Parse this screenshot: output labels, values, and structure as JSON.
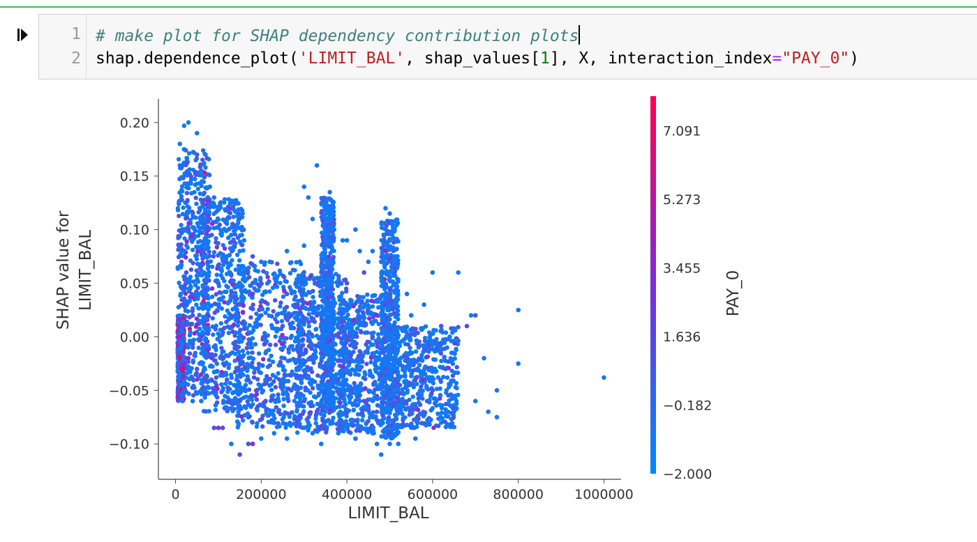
{
  "cell": {
    "lines": [
      {
        "number": "1",
        "tokens": [
          {
            "type": "comment",
            "text": "# make plot for SHAP dependency contribution plots"
          }
        ]
      },
      {
        "number": "2",
        "tokens": [
          {
            "type": "plain",
            "text": "shap.dependence_plot("
          },
          {
            "type": "string",
            "text": "'LIMIT_BAL'"
          },
          {
            "type": "plain",
            "text": ", shap_values["
          },
          {
            "type": "number",
            "text": "1"
          },
          {
            "type": "plain",
            "text": "], X, interaction_index"
          },
          {
            "type": "op",
            "text": "="
          },
          {
            "type": "string",
            "text": "\"PAY_0\""
          },
          {
            "type": "plain",
            "text": ")"
          }
        ]
      }
    ]
  },
  "chart_data": {
    "type": "scatter",
    "xlabel": "LIMIT_BAL",
    "ylabel_lines": [
      "SHAP value for",
      "LIMIT_BAL"
    ],
    "colorbar_label": "PAY_0",
    "xlim": [
      -40000,
      1040000
    ],
    "ylim": [
      -0.133,
      0.222
    ],
    "xticks": [
      0,
      200000,
      400000,
      600000,
      800000,
      1000000
    ],
    "xtick_labels": [
      "0",
      "200000",
      "400000",
      "600000",
      "800000",
      "1000000"
    ],
    "yticks": [
      -0.1,
      -0.05,
      0.0,
      0.05,
      0.1,
      0.15,
      0.2
    ],
    "ytick_labels": [
      "−0.10",
      "−0.05",
      "0.00",
      "0.05",
      "0.10",
      "0.15",
      "0.20"
    ],
    "colorbar_ticks": [
      -2.0,
      -0.182,
      1.636,
      3.455,
      5.273,
      7.091
    ],
    "colorbar_tick_labels": [
      "−2.000",
      "−0.182",
      "1.636",
      "3.455",
      "5.273",
      "7.091"
    ],
    "colorbar_range": [
      -2.0,
      8.0
    ],
    "colormap": [
      "#008afb",
      "#7a2cd8",
      "#ff0052"
    ],
    "points": [
      [
        10000,
        0.18,
        0
      ],
      [
        20000,
        0.197,
        0
      ],
      [
        30000,
        0.2,
        0
      ],
      [
        50000,
        0.19,
        0
      ],
      [
        20000,
        0.175,
        0
      ],
      [
        50000,
        0.17,
        1
      ],
      [
        70000,
        0.17,
        0
      ],
      [
        10000,
        0.16,
        0
      ],
      [
        30000,
        0.155,
        0
      ],
      [
        60000,
        0.155,
        0
      ],
      [
        80000,
        0.14,
        0
      ],
      [
        90000,
        0.13,
        0
      ],
      [
        100000,
        0.12,
        0
      ],
      [
        120000,
        0.11,
        0
      ],
      [
        130000,
        0.095,
        0
      ],
      [
        140000,
        0.1,
        0
      ],
      [
        160000,
        0.09,
        0
      ],
      [
        150000,
        0.08,
        0
      ],
      [
        180000,
        0.075,
        1
      ],
      [
        200000,
        0.07,
        0
      ],
      [
        220000,
        0.07,
        0
      ],
      [
        260000,
        0.08,
        0
      ],
      [
        290000,
        0.07,
        0
      ],
      [
        300000,
        0.085,
        0
      ],
      [
        310000,
        0.13,
        0
      ],
      [
        330000,
        0.16,
        0
      ],
      [
        320000,
        0.11,
        0
      ],
      [
        300000,
        0.14,
        0
      ],
      [
        350000,
        0.125,
        0
      ],
      [
        360000,
        0.135,
        0
      ],
      [
        370000,
        0.1,
        0
      ],
      [
        390000,
        0.09,
        0
      ],
      [
        400000,
        0.09,
        0
      ],
      [
        420000,
        0.1,
        0
      ],
      [
        430000,
        0.08,
        0
      ],
      [
        450000,
        0.07,
        0
      ],
      [
        460000,
        0.08,
        0
      ],
      [
        480000,
        0.07,
        0
      ],
      [
        490000,
        0.12,
        0
      ],
      [
        500000,
        0.115,
        0
      ],
      [
        500000,
        0.09,
        0
      ],
      [
        500000,
        0.06,
        0
      ],
      [
        510000,
        0.03,
        0
      ],
      [
        540000,
        0.04,
        0
      ],
      [
        550000,
        0.02,
        0
      ],
      [
        580000,
        0.03,
        0
      ],
      [
        600000,
        0.06,
        0
      ],
      [
        620000,
        0.01,
        1
      ],
      [
        640000,
        0.0,
        0
      ],
      [
        660000,
        0.06,
        0
      ],
      [
        680000,
        0.01,
        1
      ],
      [
        690000,
        0.02,
        0
      ],
      [
        700000,
        0.02,
        1
      ],
      [
        720000,
        -0.02,
        0
      ],
      [
        750000,
        -0.05,
        0
      ],
      [
        800000,
        0.025,
        0
      ],
      [
        800000,
        -0.025,
        0
      ],
      [
        1000000,
        -0.038,
        0
      ],
      [
        730000,
        -0.07,
        0
      ],
      [
        750000,
        -0.075,
        0
      ],
      [
        700000,
        -0.06,
        0
      ],
      [
        650000,
        -0.07,
        0
      ],
      [
        620000,
        -0.08,
        0
      ],
      [
        560000,
        -0.095,
        0
      ],
      [
        520000,
        -0.1,
        0
      ],
      [
        500000,
        -0.1,
        0
      ],
      [
        480000,
        -0.11,
        0
      ],
      [
        470000,
        -0.1,
        0
      ],
      [
        460000,
        -0.09,
        0
      ],
      [
        420000,
        -0.095,
        0
      ],
      [
        380000,
        -0.09,
        0
      ],
      [
        340000,
        -0.1,
        0
      ],
      [
        320000,
        -0.09,
        0
      ],
      [
        300000,
        -0.085,
        0
      ],
      [
        260000,
        -0.095,
        0
      ],
      [
        230000,
        -0.09,
        0
      ],
      [
        200000,
        -0.095,
        0
      ],
      [
        180000,
        -0.1,
        2
      ],
      [
        170000,
        -0.1,
        1
      ],
      [
        150000,
        -0.11,
        1
      ],
      [
        130000,
        -0.1,
        0
      ],
      [
        110000,
        -0.085,
        1
      ],
      [
        100000,
        -0.085,
        2
      ],
      [
        90000,
        -0.085,
        1
      ],
      [
        60000,
        -0.06,
        0
      ],
      [
        40000,
        -0.06,
        0
      ],
      [
        15000,
        -0.055,
        0
      ],
      [
        20000,
        -0.05,
        0
      ],
      [
        10000,
        -0.02,
        3
      ],
      [
        15000,
        -0.03,
        3
      ],
      [
        20000,
        -0.025,
        2
      ],
      [
        10000,
        0.0,
        2
      ],
      [
        15000,
        0.01,
        1
      ],
      [
        30000,
        -0.02,
        2
      ],
      [
        20000,
        0.03,
        1
      ],
      [
        40000,
        0.02,
        1
      ],
      [
        50000,
        -0.03,
        1
      ],
      [
        60000,
        0.0,
        1
      ],
      [
        70000,
        -0.04,
        1
      ],
      [
        90000,
        -0.05,
        1
      ],
      [
        120000,
        -0.04,
        1
      ],
      [
        150000,
        -0.06,
        1
      ],
      [
        170000,
        -0.04,
        1
      ],
      [
        190000,
        -0.05,
        1
      ],
      [
        210000,
        -0.06,
        1
      ],
      [
        240000,
        -0.07,
        1
      ],
      [
        270000,
        -0.05,
        1
      ],
      [
        300000,
        -0.06,
        1
      ],
      [
        330000,
        -0.07,
        1
      ],
      [
        350000,
        -0.03,
        1
      ],
      [
        380000,
        -0.04,
        1
      ],
      [
        410000,
        -0.05,
        1
      ],
      [
        440000,
        -0.06,
        1
      ],
      [
        470000,
        -0.07,
        1
      ],
      [
        490000,
        -0.03,
        1
      ],
      [
        500000,
        -0.05,
        1
      ],
      [
        520000,
        -0.06,
        1
      ],
      [
        540000,
        -0.02,
        1
      ],
      [
        560000,
        -0.04,
        1
      ],
      [
        600000,
        -0.05,
        1
      ],
      [
        630000,
        -0.03,
        1
      ],
      [
        150000,
        0.03,
        1
      ],
      [
        200000,
        0.02,
        1
      ],
      [
        250000,
        0.01,
        1
      ],
      [
        280000,
        0.03,
        1
      ],
      [
        330000,
        0.02,
        1
      ],
      [
        380000,
        0.0,
        1
      ],
      [
        420000,
        -0.01,
        1
      ],
      [
        460000,
        0.0,
        1
      ],
      [
        180000,
        0.04,
        2
      ],
      [
        260000,
        0.04,
        1
      ],
      [
        360000,
        0.06,
        1
      ],
      [
        400000,
        0.05,
        1
      ],
      [
        440000,
        0.06,
        1
      ],
      [
        490000,
        0.03,
        1
      ],
      [
        100000,
        0.05,
        1
      ],
      [
        60000,
        0.08,
        1
      ],
      [
        30000,
        0.1,
        1
      ],
      [
        80000,
        0.11,
        1
      ],
      [
        25000,
        0.06,
        1
      ],
      [
        40000,
        -0.01,
        1
      ],
      [
        12000,
        0.04,
        0
      ],
      [
        12000,
        -0.01,
        0
      ],
      [
        12000,
        -0.045,
        0
      ]
    ],
    "dense_regions": [
      {
        "x0": 5000,
        "x1": 80000,
        "y0": -0.055,
        "y1": 0.175,
        "weights": [
          0.68,
          0.24,
          0.06,
          0.02
        ]
      },
      {
        "x0": 60000,
        "x1": 160000,
        "y0": -0.07,
        "y1": 0.13,
        "weights": [
          0.7,
          0.26,
          0.04,
          0.0
        ]
      },
      {
        "x0": 140000,
        "x1": 300000,
        "y0": -0.085,
        "y1": 0.07,
        "weights": [
          0.68,
          0.28,
          0.04,
          0.0
        ]
      },
      {
        "x0": 280000,
        "x1": 400000,
        "y0": -0.09,
        "y1": 0.06,
        "weights": [
          0.7,
          0.27,
          0.03,
          0.0
        ]
      },
      {
        "x0": 380000,
        "x1": 500000,
        "y0": -0.09,
        "y1": 0.04,
        "weights": [
          0.74,
          0.24,
          0.02,
          0.0
        ]
      },
      {
        "x0": 480000,
        "x1": 520000,
        "y0": -0.095,
        "y1": 0.11,
        "weights": [
          0.78,
          0.2,
          0.02,
          0.0
        ]
      },
      {
        "x0": 500000,
        "x1": 660000,
        "y0": -0.085,
        "y1": 0.01,
        "weights": [
          0.8,
          0.18,
          0.02,
          0.0
        ]
      },
      {
        "x0": 340000,
        "x1": 370000,
        "y0": -0.07,
        "y1": 0.13,
        "weights": [
          0.74,
          0.24,
          0.02,
          0.0
        ]
      },
      {
        "x0": 5000,
        "x1": 20000,
        "y0": -0.06,
        "y1": 0.02,
        "weights": [
          0.3,
          0.3,
          0.25,
          0.15
        ]
      }
    ]
  }
}
